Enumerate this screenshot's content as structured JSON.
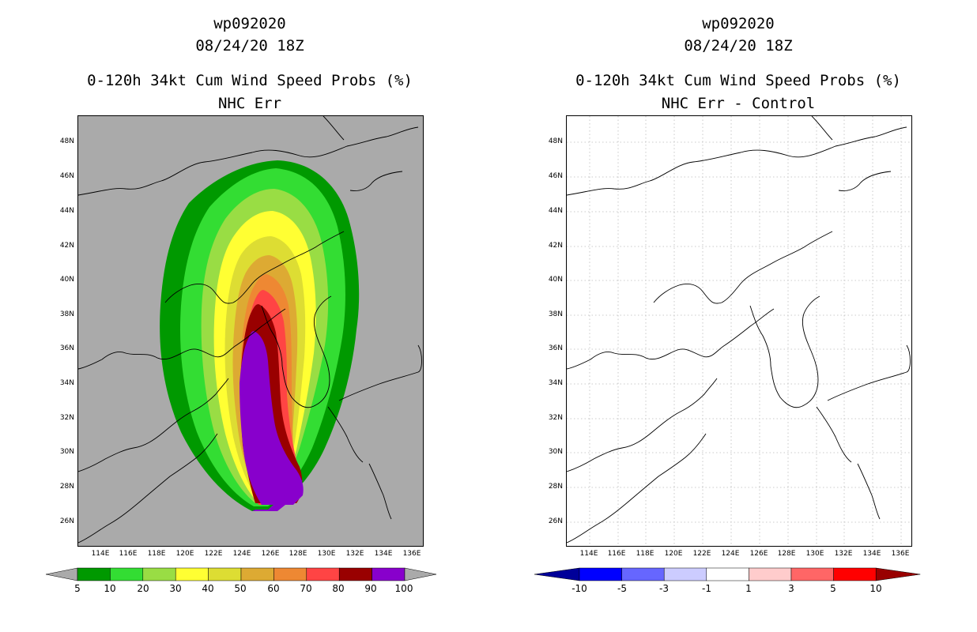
{
  "left": {
    "title1": "wp092020",
    "title2": "08/24/20 18Z",
    "title3": "0-120h 34kt Cum Wind Speed Probs (%)",
    "title4": "NHC Err",
    "colorbar_labels": [
      "5",
      "10",
      "20",
      "30",
      "40",
      "50",
      "60",
      "70",
      "80",
      "90",
      "100"
    ],
    "colors": [
      "#009900",
      "#33dd33",
      "#99dd44",
      "#ffff33",
      "#dddd33",
      "#ddaa33",
      "#ee8833",
      "#ff4444",
      "#990000",
      "#8800cc"
    ]
  },
  "right": {
    "title1": "wp092020",
    "title2": "08/24/20 18Z",
    "title3": "0-120h 34kt Cum Wind Speed Probs (%)",
    "title4": "NHC Err - Control",
    "colorbar_labels": [
      "-10",
      "-5",
      "-3",
      "-1",
      "1",
      "3",
      "5",
      "10"
    ],
    "colors": [
      "#000099",
      "#0000ff",
      "#6666ff",
      "#ccccff",
      "#ffffff",
      "#ffcccc",
      "#ff6666",
      "#ff0000",
      "#990000"
    ]
  },
  "axes": {
    "lat_labels": [
      "48N",
      "46N",
      "44N",
      "42N",
      "40N",
      "38N",
      "36N",
      "34N",
      "32N",
      "30N",
      "28N",
      "26N"
    ],
    "lon_labels": [
      "114E",
      "116E",
      "118E",
      "120E",
      "122E",
      "124E",
      "126E",
      "128E",
      "130E",
      "132E",
      "134E",
      "136E"
    ]
  }
}
